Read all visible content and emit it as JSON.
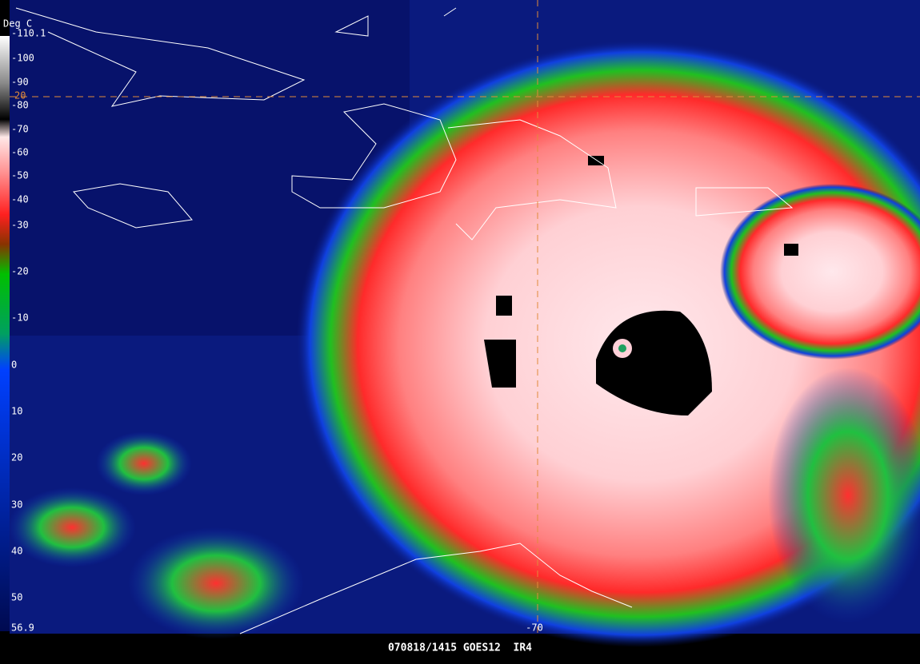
{
  "colorbar": {
    "unit": "Deg C",
    "max_label": "-110.1",
    "labels": [
      "-100",
      "-90",
      "-80",
      "-70",
      "-60",
      "-50",
      "-40",
      "-30",
      "-20",
      "-10",
      "0",
      "10",
      "20",
      "30",
      "40",
      "50"
    ],
    "min_label": "56.9"
  },
  "grid": {
    "latitude_label": "20",
    "longitude_label": "-70"
  },
  "caption": "070818/1415 GOES12  IR4"
}
